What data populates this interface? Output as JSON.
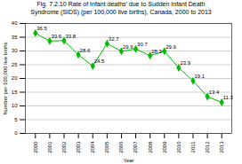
{
  "chart_data": {
    "type": "line",
    "title": "Fig. 7.2.10 Rate of Infant deaths' due to Sudden Infant Death",
    "subtitle": "Syndrome (SIDS) (per 100,000 live births), Canada, 2000 to 2013",
    "x_label": "Year",
    "y_label": "Number per 100,000 live births",
    "x": [
      2000,
      2001,
      2002,
      2003,
      2004,
      2005,
      2006,
      2007,
      2008,
      2009,
      2010,
      2011,
      2012,
      2013
    ],
    "values": [
      36.5,
      33.6,
      33.8,
      28.6,
      24.5,
      32.7,
      29.9,
      30.7,
      28.3,
      29.9,
      23.9,
      19.1,
      13.4,
      11.3
    ],
    "color": "#00bb00",
    "marker": "diamond",
    "xlim": [
      1999.3,
      2013.7
    ],
    "xticks": [
      2000,
      2001,
      2002,
      2003,
      2004,
      2005,
      2006,
      2007,
      2008,
      2009,
      2010,
      2011,
      2012,
      2013
    ],
    "ylim": [
      0,
      40
    ],
    "yticks": [
      0,
      5,
      10,
      15,
      20,
      25,
      30,
      35,
      40
    ],
    "grid": "y",
    "data_labels": true
  }
}
